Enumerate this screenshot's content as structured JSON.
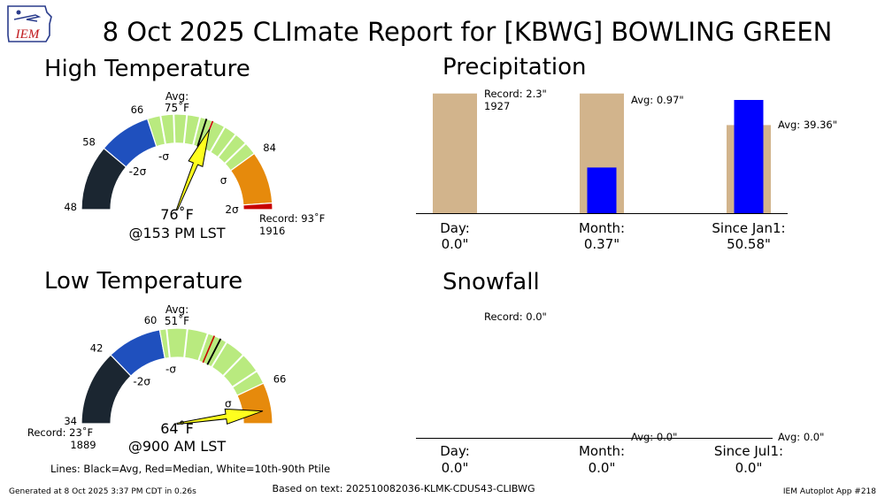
{
  "title": "8 Oct 2025 CLImate Report for [KBWG] BOWLING GREEN",
  "logo_text": "IEM",
  "footer": {
    "generated": "Generated at 8 Oct 2025 3:37 PM CDT in 0.26s",
    "source": "Based on text: 202510082036-KLMK-CDUS43-CLIBWG",
    "app": "IEM Autoplot App #218"
  },
  "lines_legend": "Lines: Black=Avg, Red=Median, White=10th-90th Ptile",
  "colors": {
    "band_cold2": "#1b2631",
    "band_cold1": "#1f50be",
    "band_normal": "#b9ea7f",
    "band_warm1": "#e68a0c",
    "record_mark": "#c80000",
    "arrow": "#ffff1e",
    "precip_avg": "#d2b48c",
    "precip_obs": "#0000ff"
  },
  "chart_data": [
    {
      "type": "gauge",
      "title": "High Temperature",
      "scale": [
        48,
        93
      ],
      "bands": [
        {
          "from": 48,
          "to": 58,
          "color": "#1b2631",
          "label": ""
        },
        {
          "from": 58,
          "to": 66,
          "color": "#1f50be",
          "label": "-2σ"
        },
        {
          "from": 66,
          "to": 84,
          "color": "#b9ea7f",
          "label": "-σ"
        },
        {
          "from": 84,
          "to": 92,
          "color": "#e68a0c",
          "label": "σ"
        },
        {
          "from": 92,
          "to": 93,
          "color": "#c80000",
          "label": "2σ"
        }
      ],
      "tick_labels": [
        "48",
        "58",
        "66",
        "84"
      ],
      "sigma_labels": [
        "-2σ",
        "-σ",
        "σ",
        "2σ"
      ],
      "ptile_lines": [
        68,
        70,
        72,
        74,
        76,
        78,
        80,
        82
      ],
      "avg": 75,
      "avg_label": "Avg:",
      "avg_value": "75$^\\circ$F",
      "avg_display": "75˚F",
      "median": 76,
      "observed": 76,
      "observed_label": "76˚F",
      "time_label": "@153 PM LST",
      "record_label": "Record: 93˚F",
      "record_year": "1916"
    },
    {
      "type": "gauge",
      "title": "Low Temperature",
      "scale": [
        23,
        66
      ],
      "bands": [
        {
          "from": 23,
          "to": 34,
          "color": "#1b2631",
          "label": ""
        },
        {
          "from": 34,
          "to": 42,
          "color": "#1f50be",
          "label": "-2σ"
        },
        {
          "from": 42,
          "to": 60,
          "color": "#b9ea7f",
          "label": "-σ"
        },
        {
          "from": 60,
          "to": 66,
          "color": "#e68a0c",
          "label": "σ"
        }
      ],
      "tick_labels": [
        "34",
        "42",
        "60",
        "66"
      ],
      "sigma_labels": [
        "-2σ",
        "-σ",
        "σ"
      ],
      "ptile_lines": [
        43,
        46,
        49,
        52,
        55,
        58
      ],
      "avg": 51,
      "avg_label": "Avg:",
      "avg_display": "51˚F",
      "median": 50,
      "observed": 64,
      "observed_label": "64˚F",
      "time_label": "@900 AM LST",
      "record_label": "Record: 23˚F",
      "record_year": "1889"
    },
    {
      "type": "bar",
      "title": "Precipitation",
      "categories": [
        "Day:",
        "Month:",
        "Since Jan1:"
      ],
      "observed_values": [
        0.0,
        0.37,
        50.58
      ],
      "observed_labels": [
        "0.0\"",
        "0.37\"",
        "50.58\""
      ],
      "avg_values": [
        null,
        0.97,
        39.36
      ],
      "avg_labels": [
        "",
        "Avg: 0.97\"",
        "Avg: 39.36\""
      ],
      "record_label": "Record: 2.3\"",
      "record_year": "1927",
      "record_value": 2.3
    },
    {
      "type": "bar",
      "title": "Snowfall",
      "categories": [
        "Day:",
        "Month:",
        "Since Jul1:"
      ],
      "observed_values": [
        0.0,
        0.0,
        0.0
      ],
      "observed_labels": [
        "0.0\"",
        "0.0\"",
        "0.0\""
      ],
      "avg_labels": [
        "",
        "Avg: 0.0\"",
        "Avg: 0.0\""
      ],
      "record_label": "Record: 0.0\""
    }
  ]
}
